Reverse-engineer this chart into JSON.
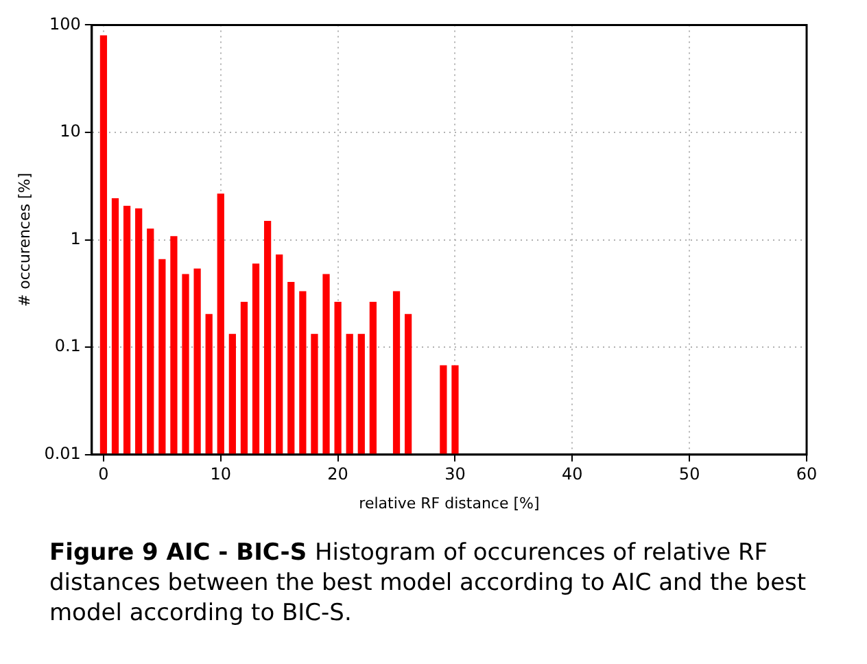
{
  "chart_data": {
    "type": "bar",
    "x": [
      0,
      1,
      2,
      3,
      4,
      5,
      6,
      7,
      8,
      9,
      10,
      11,
      12,
      13,
      14,
      15,
      16,
      17,
      18,
      19,
      20,
      21,
      22,
      23,
      25,
      26,
      29,
      30
    ],
    "values": [
      80,
      2.44,
      2.07,
      1.96,
      1.27,
      0.66,
      1.08,
      0.48,
      0.54,
      0.204,
      2.69,
      0.133,
      0.265,
      0.6,
      1.5,
      0.73,
      0.405,
      0.333,
      0.133,
      0.48,
      0.265,
      0.133,
      0.133,
      0.265,
      0.333,
      0.204,
      0.068,
      0.068
    ],
    "color": "#ff0000",
    "xlabel": "relative RF distance [%]",
    "ylabel": "# occurences [%]",
    "xlim": [
      -1,
      60
    ],
    "xticks": [
      0,
      10,
      20,
      30,
      40,
      50,
      60
    ],
    "ylim": [
      0.01,
      100
    ],
    "yticks": [
      0.01,
      0.1,
      1,
      10,
      100
    ],
    "log": "y",
    "grid": true,
    "annotations": [
      "Figure 9  AIC - BIC-S",
      "Histogram of occurences of relative RF distances between the best model according to AIC and the best model according to BIC-S."
    ]
  }
}
